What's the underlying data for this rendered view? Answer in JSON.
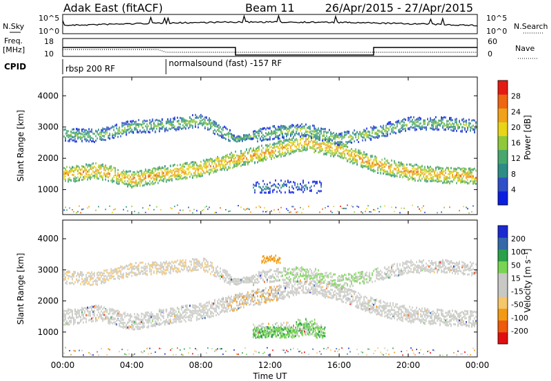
{
  "header": {
    "station": "Adak East (fitACF)",
    "beam": "Beam 11",
    "date_range": "26/Apr/2015 - 27/Apr/2015"
  },
  "status_panels": {
    "nsky_label": "N.Sky",
    "nsearch_label": "N.Search",
    "freq_label_line1": "Freq.",
    "freq_label_line2": "[MHz]",
    "nave_label": "Nave",
    "cpid_label": "CPID",
    "noise_ticks": [
      "10^5",
      "10^0"
    ],
    "freq_ticks": [
      "18",
      "10"
    ],
    "nave_ticks": [
      "60",
      "0"
    ],
    "cpid_segments": [
      {
        "label": "rbsp 200 RF",
        "start_hour": 0
      },
      {
        "label": "normalsound (fast) -157 RF",
        "start_hour": 6
      }
    ],
    "frequency_steps": [
      {
        "from_hour": 0,
        "to_hour": 10,
        "freq_mhz": 14
      },
      {
        "from_hour": 10,
        "to_hour": 18,
        "freq_mhz": 10.6
      },
      {
        "from_hour": 18,
        "to_hour": 24,
        "freq_mhz": 14
      }
    ]
  },
  "chart_data": [
    {
      "type": "heatmap",
      "panel": "power",
      "ylabel": "Slant Range [km]",
      "y_ticks": [
        1000,
        2000,
        3000,
        4000
      ],
      "ylim": [
        200,
        4600
      ],
      "xlim_hours": [
        0,
        24
      ],
      "colorbar_label": "Power [dB]",
      "colorbar_ticks": [
        "28",
        "24",
        "20",
        "16",
        "12",
        "8",
        "4"
      ],
      "colorbar_range": [
        0,
        32
      ],
      "colors": [
        "#0b1ee0",
        "#2f4fc8",
        "#2d8c86",
        "#48a76c",
        "#8fc83a",
        "#e8d418",
        "#f0a21a",
        "#ee6611",
        "#e31c12"
      ],
      "bands": [
        {
          "name": "lower-band",
          "range_km_by_hour": [
            [
              0,
              1450
            ],
            [
              2,
              1600
            ],
            [
              4,
              1300
            ],
            [
              6,
              1500
            ],
            [
              8,
              1650
            ],
            [
              10,
              1950
            ],
            [
              12,
              2200
            ],
            [
              14,
              2500
            ],
            [
              16,
              2250
            ],
            [
              18,
              1800
            ],
            [
              20,
              1550
            ],
            [
              22,
              1450
            ],
            [
              24,
              1400
            ]
          ],
          "peak_db": 24
        },
        {
          "name": "upper-band",
          "range_km_by_hour": [
            [
              0,
              2750
            ],
            [
              2,
              2700
            ],
            [
              4,
              3000
            ],
            [
              6,
              3050
            ],
            [
              8,
              3200
            ],
            [
              10,
              2600
            ],
            [
              12,
              2800
            ],
            [
              14,
              2900
            ],
            [
              16,
              2600
            ],
            [
              18,
              2800
            ],
            [
              20,
              3100
            ],
            [
              22,
              3100
            ],
            [
              24,
              3000
            ]
          ],
          "peak_db": 16
        },
        {
          "name": "low-echo-patch",
          "range_km_by_hour": [
            [
              11,
              1050
            ],
            [
              13,
              1100
            ],
            [
              15,
              1050
            ]
          ],
          "peak_db": 10
        }
      ]
    },
    {
      "type": "heatmap",
      "panel": "velocity",
      "ylabel": "Slant Range [km]",
      "xlabel": "Time UT",
      "x_ticks": [
        "00:00",
        "04:00",
        "08:00",
        "12:00",
        "16:00",
        "20:00",
        "00:00"
      ],
      "y_ticks": [
        1000,
        2000,
        3000,
        4000
      ],
      "ylim": [
        200,
        4600
      ],
      "xlim_hours": [
        0,
        24
      ],
      "colorbar_label": "Velocity [m s⁻¹]",
      "colorbar_ticks": [
        "200",
        "100",
        "50",
        "15",
        "-15",
        "-50",
        "-100",
        "-200"
      ],
      "colorbar_range": [
        -250,
        250
      ],
      "colors": [
        "#e01010",
        "#ee5a0e",
        "#f29a14",
        "#f5c66a",
        "#c8c8c4",
        "#c8c8c4",
        "#7ad454",
        "#2aa04a",
        "#3468a8",
        "#1a2ad0"
      ],
      "bands": [
        {
          "name": "lower-band",
          "velocity": 0
        },
        {
          "name": "upper-band",
          "velocity": -20
        },
        {
          "name": "green-patch",
          "range_km_by_hour": [
            [
              11,
              900
            ],
            [
              13,
              950
            ],
            [
              15,
              950
            ]
          ],
          "velocity": 60
        },
        {
          "name": "orange-patch",
          "range_km_by_hour": [
            [
              12,
              3300
            ]
          ],
          "velocity": -80
        }
      ]
    }
  ]
}
